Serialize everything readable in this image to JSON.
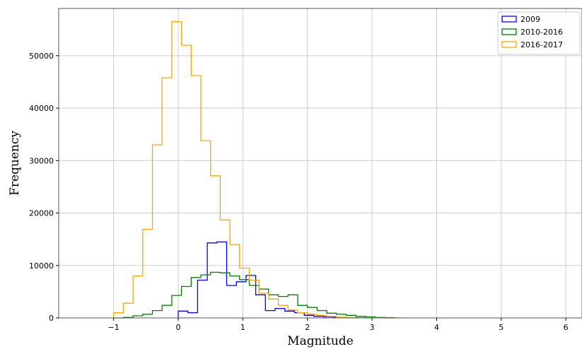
{
  "chart_data": {
    "type": "histogram",
    "title": "",
    "xlabel": "Magnitude",
    "ylabel": "Frequency",
    "xlim": [
      -1.85,
      6.25
    ],
    "ylim": [
      0,
      59000
    ],
    "xticks": [
      -1,
      0,
      1,
      2,
      3,
      4,
      5,
      6
    ],
    "yticks": [
      0,
      10000,
      20000,
      30000,
      40000,
      50000
    ],
    "xtick_labels": [
      "−1",
      "0",
      "1",
      "2",
      "3",
      "4",
      "5",
      "6"
    ],
    "ytick_labels": [
      "0",
      "10000",
      "20000",
      "30000",
      "40000",
      "50000"
    ],
    "grid": true,
    "legend_position": "top-right",
    "series": [
      {
        "name": "2009",
        "color": "#0000ff",
        "x_start": 0.0,
        "bin_width": 0.15,
        "values": [
          1300,
          1000,
          7200,
          14300,
          14500,
          6200,
          6900,
          8100,
          4400,
          1400,
          1800,
          1300,
          1000,
          500,
          300,
          200,
          100,
          50
        ]
      },
      {
        "name": "2010-2016",
        "color": "#008000",
        "x_start": -1.0,
        "bin_width": 0.15,
        "values": [
          0,
          100,
          400,
          700,
          1400,
          2400,
          4300,
          6000,
          7700,
          8200,
          8700,
          8600,
          8000,
          7300,
          6200,
          5500,
          4400,
          4100,
          4400,
          2400,
          2000,
          1400,
          900,
          700,
          500,
          300,
          200,
          100,
          50
        ]
      },
      {
        "name": "2016-2017",
        "color": "#ffa500",
        "x_start": -1.0,
        "bin_width": 0.15,
        "values": [
          1000,
          2800,
          8000,
          16900,
          33000,
          45800,
          56500,
          52000,
          46200,
          33800,
          27100,
          18700,
          14000,
          9500,
          7200,
          4700,
          3600,
          2400,
          1500,
          1000,
          700,
          500,
          300,
          150,
          80,
          40,
          20,
          10,
          5,
          0
        ]
      }
    ]
  }
}
